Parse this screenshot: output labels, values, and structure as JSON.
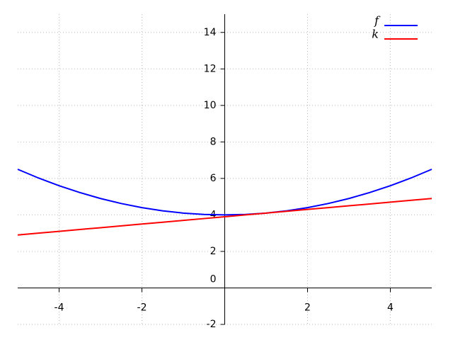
{
  "chart_data": {
    "type": "line",
    "x": [
      -5,
      -4.5,
      -4,
      -3.5,
      -3,
      -2.5,
      -2,
      -1.5,
      -1,
      -0.5,
      0,
      0.5,
      1,
      1.5,
      2,
      2.5,
      3,
      3.5,
      4,
      4.5,
      5
    ],
    "series": [
      {
        "name": "f",
        "color": "#0000ff",
        "values": [
          6.5,
          6.025,
          5.6,
          5.225,
          4.9,
          4.625,
          4.4,
          4.225,
          4.1,
          4.025,
          4,
          4.025,
          4.1,
          4.225,
          4.4,
          4.625,
          4.9,
          5.225,
          5.6,
          6.025,
          6.5
        ]
      },
      {
        "name": "k",
        "color": "#ff0000",
        "values": [
          2.9,
          3.0,
          3.1,
          3.2,
          3.3,
          3.4,
          3.5,
          3.6,
          3.7,
          3.8,
          3.9,
          4.0,
          4.1,
          4.2,
          4.3,
          4.4,
          4.5,
          4.6,
          4.7,
          4.8,
          4.9
        ]
      }
    ],
    "xlim": [
      -5,
      5
    ],
    "ylim": [
      -2,
      15
    ],
    "xticks": [
      -4,
      -2,
      2,
      4
    ],
    "yticks": [
      -2,
      0,
      2,
      4,
      6,
      8,
      10,
      12,
      14
    ],
    "grid": true,
    "legend": "upper-right"
  }
}
